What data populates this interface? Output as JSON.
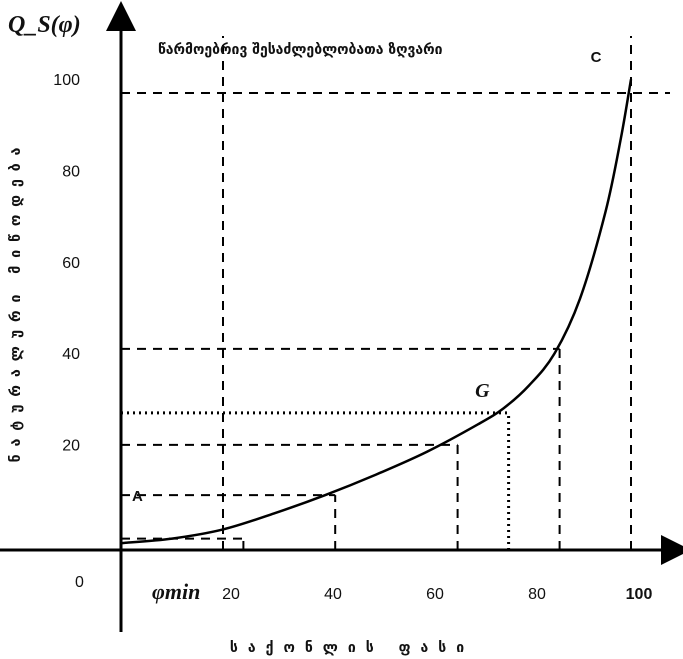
{
  "chart_data": {
    "type": "line",
    "title": "წარმოებრივ შესაძლებლობათა ზღვარი",
    "ylabel": "Q_S(φ)",
    "ylabel_side": "ნატურალური მიწოდება",
    "xlabel": "საქონლის ფასი",
    "origin_label": "0",
    "x_ticks": [
      "20",
      "40",
      "60",
      "80",
      "100"
    ],
    "y_ticks": [
      "20",
      "40",
      "60",
      "80",
      "100"
    ],
    "phi_min_label": "φmin",
    "xlim": [
      0,
      100
    ],
    "ylim": [
      0,
      100
    ],
    "series": [
      {
        "x": [
          0,
          10,
          20,
          30,
          40,
          50,
          60,
          70,
          75,
          80,
          85,
          90,
          95,
          98,
          100
        ],
        "y": [
          1.5,
          2.5,
          4.5,
          8,
          12,
          16.5,
          21.5,
          27.5,
          31,
          36,
          43,
          55,
          74,
          90,
          103
        ]
      }
    ],
    "points": [
      {
        "label": "A",
        "x": 20,
        "y": 12
      },
      {
        "label": "G",
        "x": 71,
        "y": 30
      },
      {
        "label": "C",
        "x": 96,
        "y": 103
      }
    ],
    "guides_dashed": [
      {
        "x": 20,
        "y": 100
      },
      {
        "x": 42,
        "y": 12
      },
      {
        "x": 66,
        "y": 23
      },
      {
        "x": 86,
        "y": 44
      },
      {
        "x": 100,
        "y": 100
      },
      {
        "x": 24,
        "y": 2.5
      }
    ],
    "guides_dotted": [
      {
        "x": 76,
        "y": 30
      }
    ],
    "grid": false
  }
}
